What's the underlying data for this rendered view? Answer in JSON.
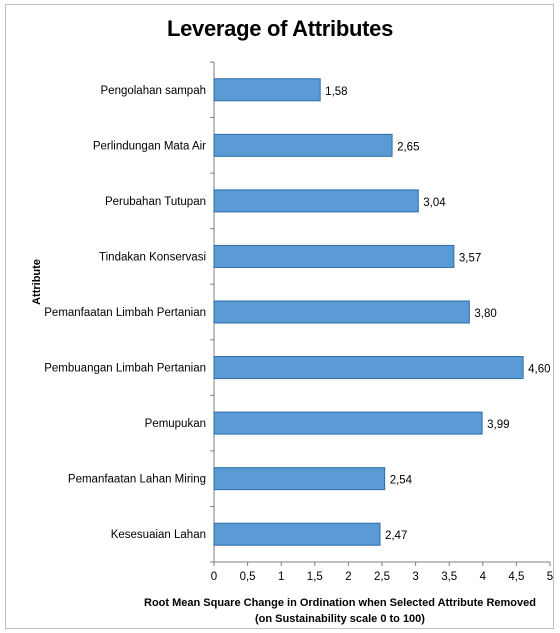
{
  "chart_data": {
    "type": "bar",
    "orientation": "horizontal",
    "title": "Leverage of Attributes",
    "xlabel_line1": "Root Mean Square Change in Ordination when Selected Attribute Removed",
    "xlabel_line2": "(on Sustainability scale 0 to 100)",
    "ylabel": "Attribute",
    "xlim": [
      0,
      5
    ],
    "x_ticks": [
      "0",
      "0,5",
      "1",
      "1,5",
      "2",
      "2,5",
      "3",
      "3,5",
      "4",
      "4,5",
      "5"
    ],
    "grid": false,
    "legend": "none",
    "bar_color": "#5b9bd5",
    "bar_edge_color": "#2e6da4",
    "categories": [
      "Pengolahan sampah",
      "Perlindungan Mata Air",
      "Perubahan Tutupan",
      "Tindakan Konservasi",
      "Pemanfaatan Limbah Pertanian",
      "Pembuangan Limbah Pertanian",
      "Pemupukan",
      "Pemanfaatan Lahan Miring",
      "Kesesuaian Lahan"
    ],
    "values": [
      1.58,
      2.65,
      3.04,
      3.57,
      3.8,
      4.6,
      3.99,
      2.54,
      2.47
    ],
    "value_labels": [
      "1,58",
      "2,65",
      "3,04",
      "3,57",
      "3,80",
      "4,60",
      "3,99",
      "2,54",
      "2,47"
    ]
  }
}
